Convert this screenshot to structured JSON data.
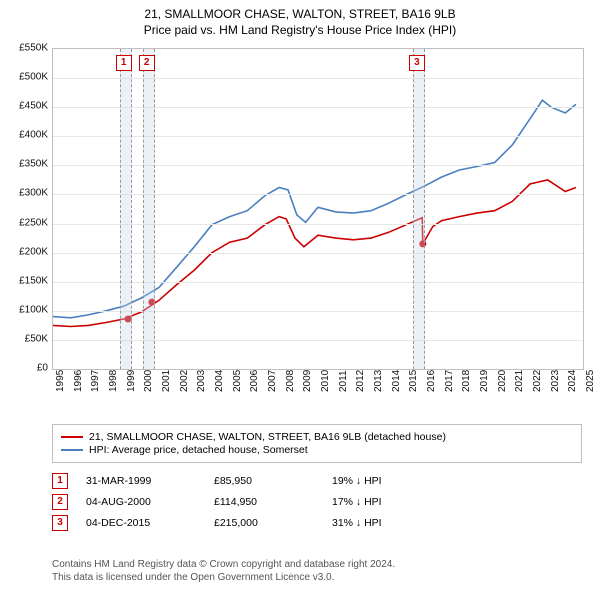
{
  "title": {
    "line1": "21, SMALLMOOR CHASE, WALTON, STREET, BA16 9LB",
    "line2": "Price paid vs. HM Land Registry's House Price Index (HPI)"
  },
  "chart": {
    "type": "line",
    "background_color": "#ffffff",
    "grid_color": "#e6e6e6",
    "border_color": "#bfbfbf",
    "x_domain": [
      1995,
      2025
    ],
    "y_domain": [
      0,
      550000
    ],
    "y_ticks": [
      0,
      50000,
      100000,
      150000,
      200000,
      250000,
      300000,
      350000,
      400000,
      450000,
      500000,
      550000
    ],
    "y_tick_labels": [
      "£0",
      "£50K",
      "£100K",
      "£150K",
      "£200K",
      "£250K",
      "£300K",
      "£350K",
      "£400K",
      "£450K",
      "£500K",
      "£550K"
    ],
    "x_ticks": [
      1995,
      1996,
      1997,
      1998,
      1999,
      2000,
      2001,
      2002,
      2003,
      2004,
      2005,
      2006,
      2007,
      2008,
      2009,
      2010,
      2011,
      2012,
      2013,
      2014,
      2015,
      2016,
      2017,
      2018,
      2019,
      2020,
      2021,
      2022,
      2023,
      2024,
      2025
    ],
    "tick_fontsize": 10,
    "series": [
      {
        "name": "price_paid",
        "color": "#cc0000",
        "line_width": 1.6,
        "points": [
          [
            1995.0,
            75000
          ],
          [
            1996.0,
            73000
          ],
          [
            1997.0,
            75000
          ],
          [
            1998.0,
            80000
          ],
          [
            1999.0,
            86000
          ],
          [
            2000.0,
            98000
          ],
          [
            2000.6,
            110000
          ],
          [
            2001.0,
            118000
          ],
          [
            2002.0,
            145000
          ],
          [
            2003.0,
            170000
          ],
          [
            2004.0,
            200000
          ],
          [
            2005.0,
            218000
          ],
          [
            2006.0,
            225000
          ],
          [
            2007.0,
            248000
          ],
          [
            2007.8,
            262000
          ],
          [
            2008.2,
            258000
          ],
          [
            2008.7,
            225000
          ],
          [
            2009.2,
            210000
          ],
          [
            2010.0,
            230000
          ],
          [
            2011.0,
            225000
          ],
          [
            2012.0,
            222000
          ],
          [
            2013.0,
            225000
          ],
          [
            2014.0,
            235000
          ],
          [
            2015.0,
            248000
          ],
          [
            2015.9,
            260000
          ],
          [
            2015.93,
            215000
          ],
          [
            2016.5,
            245000
          ],
          [
            2017.0,
            255000
          ],
          [
            2018.0,
            262000
          ],
          [
            2019.0,
            268000
          ],
          [
            2020.0,
            272000
          ],
          [
            2021.0,
            288000
          ],
          [
            2022.0,
            318000
          ],
          [
            2023.0,
            325000
          ],
          [
            2024.0,
            305000
          ],
          [
            2024.6,
            312000
          ]
        ]
      },
      {
        "name": "hpi",
        "color": "#4a7fbf",
        "line_width": 1.6,
        "points": [
          [
            1995.0,
            90000
          ],
          [
            1996.0,
            88000
          ],
          [
            1997.0,
            93000
          ],
          [
            1998.0,
            100000
          ],
          [
            1999.0,
            108000
          ],
          [
            2000.0,
            122000
          ],
          [
            2001.0,
            140000
          ],
          [
            2002.0,
            175000
          ],
          [
            2003.0,
            210000
          ],
          [
            2004.0,
            248000
          ],
          [
            2005.0,
            262000
          ],
          [
            2006.0,
            272000
          ],
          [
            2007.0,
            298000
          ],
          [
            2007.8,
            312000
          ],
          [
            2008.3,
            308000
          ],
          [
            2008.8,
            265000
          ],
          [
            2009.3,
            252000
          ],
          [
            2010.0,
            278000
          ],
          [
            2011.0,
            270000
          ],
          [
            2012.0,
            268000
          ],
          [
            2013.0,
            272000
          ],
          [
            2014.0,
            285000
          ],
          [
            2015.0,
            300000
          ],
          [
            2016.0,
            314000
          ],
          [
            2017.0,
            330000
          ],
          [
            2018.0,
            342000
          ],
          [
            2019.0,
            348000
          ],
          [
            2020.0,
            355000
          ],
          [
            2021.0,
            385000
          ],
          [
            2022.0,
            430000
          ],
          [
            2022.7,
            462000
          ],
          [
            2023.2,
            450000
          ],
          [
            2024.0,
            440000
          ],
          [
            2024.6,
            455000
          ]
        ]
      }
    ],
    "sale_points": [
      {
        "x": 1999.25,
        "y": 85950,
        "color": "#cc0000"
      },
      {
        "x": 2000.6,
        "y": 114950,
        "color": "#cc0000"
      },
      {
        "x": 2015.93,
        "y": 215000,
        "color": "#cc0000"
      }
    ],
    "markers": [
      {
        "label": "1",
        "x": 1999.0,
        "band_color": "rgba(200,215,235,0.35)"
      },
      {
        "label": "2",
        "x": 2000.3,
        "band_color": "rgba(200,215,235,0.35)"
      },
      {
        "label": "3",
        "x": 2015.6,
        "band_color": "rgba(200,215,235,0.35)"
      }
    ]
  },
  "legend": {
    "items": [
      {
        "color": "#cc0000",
        "text": "21, SMALLMOOR CHASE, WALTON, STREET, BA16 9LB (detached house)"
      },
      {
        "color": "#4a7fbf",
        "text": "HPI: Average price, detached house, Somerset"
      }
    ]
  },
  "events": [
    {
      "label": "1",
      "date": "31-MAR-1999",
      "price": "£85,950",
      "diff": "19% ↓ HPI"
    },
    {
      "label": "2",
      "date": "04-AUG-2000",
      "price": "£114,950",
      "diff": "17% ↓ HPI"
    },
    {
      "label": "3",
      "date": "04-DEC-2015",
      "price": "£215,000",
      "diff": "31% ↓ HPI"
    }
  ],
  "footer": {
    "line1": "Contains HM Land Registry data © Crown copyright and database right 2024.",
    "line2": "This data is licensed under the Open Government Licence v3.0."
  }
}
